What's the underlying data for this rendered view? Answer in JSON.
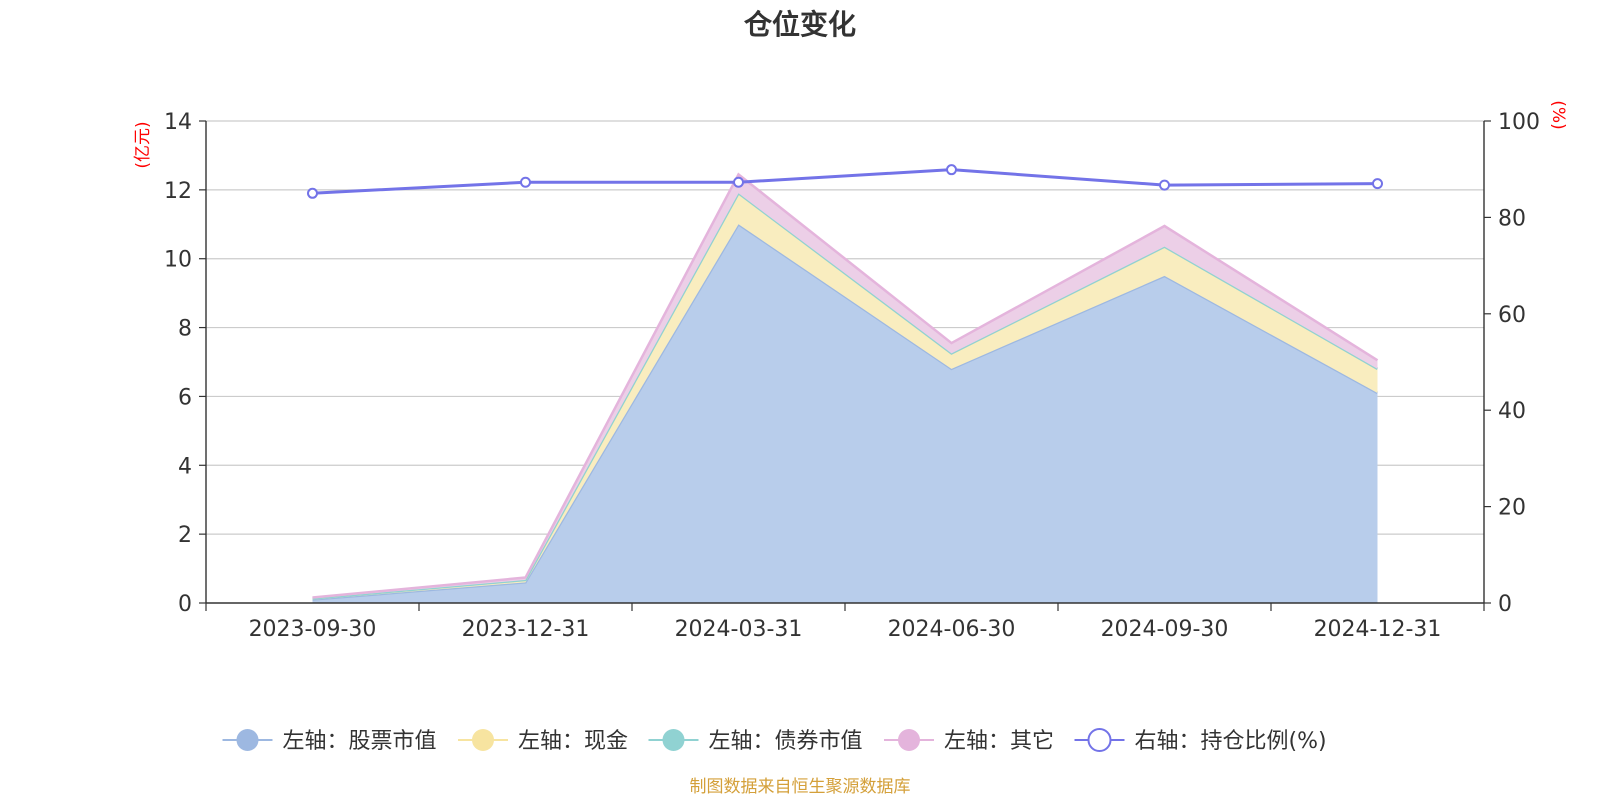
{
  "chart_data": {
    "type": "area",
    "title": "仓位变化",
    "x": [
      "2023-09-30",
      "2023-12-31",
      "2024-03-31",
      "2024-06-30",
      "2024-09-30",
      "2024-12-31"
    ],
    "y_left": {
      "unit": "(亿元)",
      "ylim": [
        0,
        14
      ],
      "ticks": [
        0,
        2,
        4,
        6,
        8,
        10,
        12,
        14
      ]
    },
    "y_right": {
      "unit": "(%)",
      "ylim": [
        0,
        100
      ],
      "ticks": [
        0,
        20,
        40,
        60,
        80,
        100
      ]
    },
    "stacked": true,
    "series": [
      {
        "name": "左轴：股票市值",
        "axis": "left",
        "type": "area",
        "color": "#9db8e1",
        "fill": "#b8cdeb",
        "values": [
          0.1,
          0.6,
          11.0,
          6.8,
          9.5,
          6.1
        ]
      },
      {
        "name": "左轴：现金",
        "axis": "left",
        "type": "area",
        "color": "#f7e4a0",
        "fill": "#f9edbf",
        "values": [
          0.03,
          0.07,
          0.9,
          0.45,
          0.85,
          0.7
        ]
      },
      {
        "name": "左轴：债券市值",
        "axis": "left",
        "type": "area",
        "color": "#90d2d2",
        "fill": "#b5e2e2",
        "values": [
          0.0,
          0.0,
          0.0,
          0.0,
          0.0,
          0.0
        ]
      },
      {
        "name": "左轴：其它",
        "axis": "left",
        "type": "area",
        "color": "#e4b4dc",
        "fill": "#eccfe7",
        "values": [
          0.03,
          0.07,
          0.55,
          0.3,
          0.6,
          0.25
        ]
      },
      {
        "name": "右轴：持仓比例(%)",
        "axis": "right",
        "type": "line",
        "color": "#7373e8",
        "values": [
          85.0,
          87.3,
          87.3,
          89.9,
          86.7,
          87.0
        ]
      }
    ],
    "grid": true,
    "legend": "bottom",
    "source": "制图数据来自恒生聚源数据库"
  }
}
